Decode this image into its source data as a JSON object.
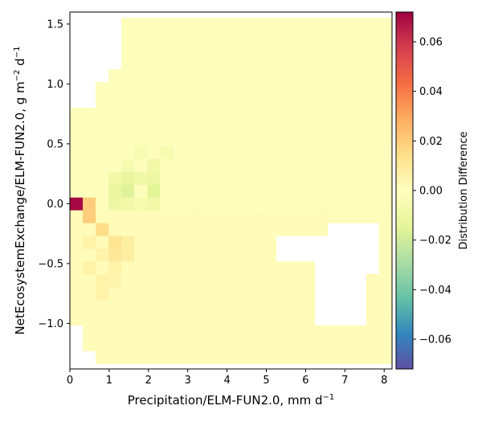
{
  "chart_data": {
    "type": "heatmap",
    "title": "",
    "xlabel": "Precipitation/ELM-FUN2.0,  mm d",
    "xlabel_unit_superscript": "−1",
    "ylabel": "NetEcosystemExchange/ELM-FUN2.0,  g m",
    "ylabel_sup1": "−2",
    "ylabel_mid": " d",
    "ylabel_sup2": "−1",
    "xlim": [
      0,
      8.2
    ],
    "ylim": [
      -1.38,
      1.6
    ],
    "x_ticks": [
      0,
      1,
      2,
      3,
      4,
      5,
      6,
      7,
      8
    ],
    "x_tick_labels": [
      "0",
      "1",
      "2",
      "3",
      "4",
      "5",
      "6",
      "7",
      "8"
    ],
    "y_ticks": [
      -1.0,
      -0.5,
      0.0,
      0.5,
      1.0,
      1.5
    ],
    "y_tick_labels": [
      "−1.0",
      "−0.5",
      "0.0",
      "0.5",
      "1.0",
      "1.5"
    ],
    "x_bin_width": 0.328,
    "y_bin_height": 0.107,
    "colorbar": {
      "label": "Distribution Difference",
      "range": [
        -0.072,
        0.072
      ],
      "ticks": [
        -0.06,
        -0.04,
        -0.02,
        0.0,
        0.02,
        0.04,
        0.06
      ],
      "tick_labels": [
        "−0.06",
        "−0.04",
        "−0.02",
        "0.00",
        "0.02",
        "0.04",
        "0.06"
      ],
      "colormap": "Spectral_r"
    },
    "grid": false,
    "cells": [
      [
        0,
        0,
        0.07
      ],
      [
        1,
        0,
        0.02
      ],
      [
        1,
        -1,
        0.02
      ],
      [
        2,
        -2,
        0.015
      ],
      [
        3,
        -3,
        0.012
      ],
      [
        4,
        -3,
        0.008
      ],
      [
        3,
        -4,
        0.01
      ],
      [
        4,
        -4,
        0.008
      ],
      [
        2,
        -4,
        0.006
      ],
      [
        3,
        -5,
        0.006
      ],
      [
        2,
        -6,
        0.006
      ],
      [
        3,
        -6,
        0.005
      ],
      [
        2,
        -7,
        0.006
      ],
      [
        1,
        -5,
        0.006
      ],
      [
        1,
        -3,
        0.006
      ],
      [
        3,
        1,
        -0.012
      ],
      [
        4,
        1,
        -0.016
      ],
      [
        6,
        1,
        -0.015
      ],
      [
        3,
        2,
        -0.008
      ],
      [
        4,
        2,
        -0.012
      ],
      [
        5,
        2,
        -0.009
      ],
      [
        6,
        2,
        -0.01
      ],
      [
        3,
        0,
        -0.01
      ],
      [
        4,
        0,
        -0.008
      ],
      [
        5,
        0,
        -0.006
      ],
      [
        6,
        0,
        -0.008
      ],
      [
        4,
        3,
        -0.006
      ],
      [
        6,
        3,
        -0.008
      ],
      [
        7,
        4,
        -0.006
      ],
      [
        5,
        4,
        -0.005
      ]
    ]
  }
}
